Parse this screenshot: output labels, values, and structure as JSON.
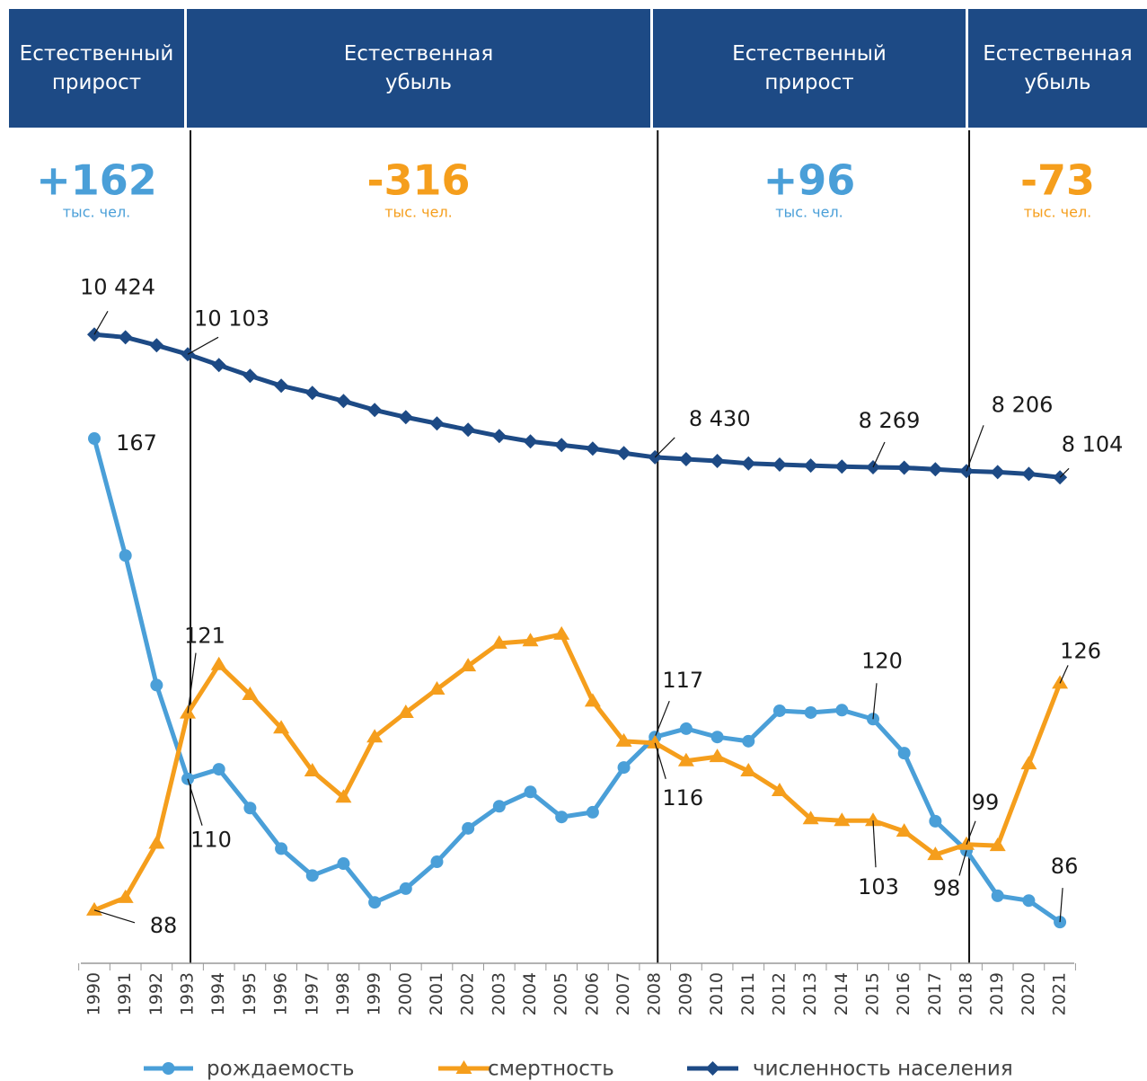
{
  "chart_data": {
    "type": "line",
    "periods": [
      {
        "title": "Естественный прирост",
        "value": "+162",
        "unit": "тыс. чел.",
        "color": "#4a9fd8"
      },
      {
        "title": "Естественная убыль",
        "value": "-316",
        "unit": "тыс. чел.",
        "color": "#f59e1c"
      },
      {
        "title": "Естественный прирост",
        "value": "+96",
        "unit": "тыс. чел.",
        "color": "#4a9fd8"
      },
      {
        "title": "Естественная убыль",
        "value": "-73",
        "unit": "тыс. чел.",
        "color": "#f59e1c"
      }
    ],
    "categories": [
      "1990",
      "1991",
      "1992",
      "1993",
      "1994",
      "1995",
      "1996",
      "1997",
      "1998",
      "1999",
      "2000",
      "2001",
      "2002",
      "2003",
      "2004",
      "2005",
      "2006",
      "2007",
      "2008",
      "2009",
      "2010",
      "2011",
      "2012",
      "2013",
      "2014",
      "2015",
      "2016",
      "2017",
      "2018",
      "2019",
      "2020",
      "2021"
    ],
    "ylim": [
      80,
      195
    ],
    "y2lim": [
      300,
      11450
    ],
    "series": [
      {
        "name": "рождаемость",
        "color": "#4a9fd8",
        "marker": "circle",
        "values": [
          167,
          147.4,
          125.7,
          110,
          111.6,
          105.1,
          98.3,
          93.8,
          95.8,
          89.3,
          91.6,
          96.1,
          101.7,
          105.4,
          107.8,
          103.6,
          104.4,
          111.9,
          117,
          118.4,
          117,
          116.3,
          121.4,
          121.1,
          121.5,
          120,
          114.3,
          102.9,
          98,
          90.4,
          89.6,
          86
        ],
        "value_labels": [
          "167",
          null,
          null,
          "110",
          null,
          null,
          null,
          null,
          null,
          null,
          null,
          null,
          null,
          null,
          null,
          null,
          null,
          null,
          "117",
          null,
          null,
          null,
          null,
          null,
          null,
          "120",
          null,
          null,
          "98",
          null,
          null,
          "86"
        ]
      },
      {
        "name": "смертность",
        "color": "#f59e1c",
        "marker": "triangle",
        "values": [
          88,
          90.1,
          99.2,
          121,
          129.1,
          124.1,
          118.5,
          111.3,
          106.9,
          117,
          121.1,
          125,
          128.9,
          132.7,
          133.1,
          134.2,
          123,
          116.3,
          116,
          113,
          113.7,
          111.3,
          108,
          103.3,
          103,
          103,
          101.2,
          97.3,
          99,
          98.8,
          112.5,
          126
        ],
        "value_labels": [
          "88",
          null,
          null,
          "121",
          null,
          null,
          null,
          null,
          null,
          null,
          null,
          null,
          null,
          null,
          null,
          null,
          null,
          null,
          "116",
          null,
          null,
          null,
          null,
          null,
          null,
          "103",
          null,
          null,
          "99",
          null,
          null,
          "126"
        ]
      },
      {
        "name": "численность населения",
        "color": "#1d4a85",
        "marker": "diamond",
        "axis": "y2",
        "values": [
          10424,
          10380,
          10249,
          10103,
          9928,
          9753,
          9592,
          9476,
          9344,
          9198,
          9082,
          8980,
          8877,
          8775,
          8688,
          8629,
          8571,
          8498,
          8430,
          8400,
          8370,
          8330,
          8312,
          8295,
          8280,
          8269,
          8262,
          8235,
          8206,
          8190,
          8160,
          8104
        ],
        "value_labels": [
          "10 424",
          null,
          null,
          "10 103",
          null,
          null,
          null,
          null,
          null,
          null,
          null,
          null,
          null,
          null,
          null,
          null,
          null,
          null,
          "8 430",
          null,
          null,
          null,
          null,
          null,
          null,
          "8 269",
          null,
          null,
          "8 206",
          null,
          null,
          "8 104"
        ]
      }
    ]
  }
}
